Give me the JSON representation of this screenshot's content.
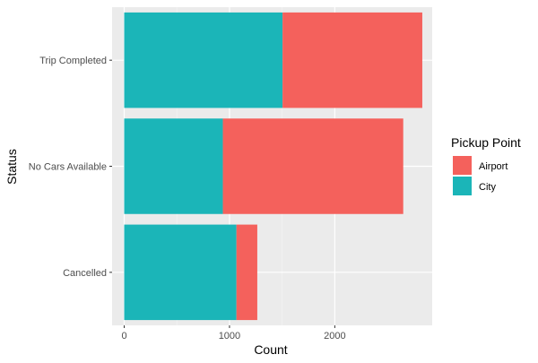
{
  "chart_data": {
    "type": "bar",
    "orientation": "horizontal",
    "stacked": true,
    "categories": [
      "Cancelled",
      "No Cars Available",
      "Trip Completed"
    ],
    "series": [
      {
        "name": "City",
        "values": [
          1066,
          937,
          1504
        ],
        "color": "#1BB5B8"
      },
      {
        "name": "Airport",
        "values": [
          198,
          1713,
          1327
        ],
        "color": "#F4615C"
      }
    ],
    "xlabel": "Count",
    "ylabel": "Status",
    "xticks": [
      0,
      1000,
      2000
    ],
    "xlim": [
      -115,
      2925
    ],
    "grid": true,
    "legend": {
      "title": "Pickup Point",
      "position": "right",
      "entries": [
        "Airport",
        "City"
      ]
    }
  }
}
